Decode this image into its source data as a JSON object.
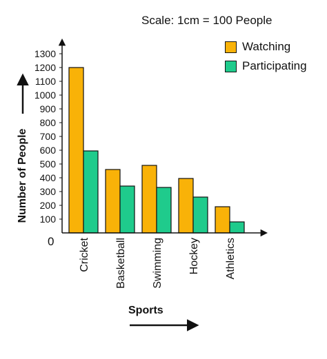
{
  "scale_note": "Scale: 1cm = 100 People",
  "colors": {
    "watching": "#F9B208",
    "participating": "#1FCB8C",
    "axis": "#111111"
  },
  "chart_data": {
    "type": "bar",
    "title": "",
    "xlabel": "Sports",
    "ylabel": "Number of People",
    "ylim": [
      0,
      1300
    ],
    "yticks": [
      100,
      200,
      300,
      400,
      500,
      600,
      700,
      800,
      900,
      1000,
      1100,
      1200,
      1300
    ],
    "origin_label": "0",
    "categories": [
      "Cricket",
      "Basketball",
      "Swimming",
      "Hockey",
      "Athletics"
    ],
    "series": [
      {
        "name": "Watching",
        "values": [
          1200,
          460,
          490,
          395,
          190
        ]
      },
      {
        "name": "Participating",
        "values": [
          595,
          340,
          330,
          260,
          80
        ]
      }
    ],
    "legend_position": "top-right",
    "grid": false
  }
}
